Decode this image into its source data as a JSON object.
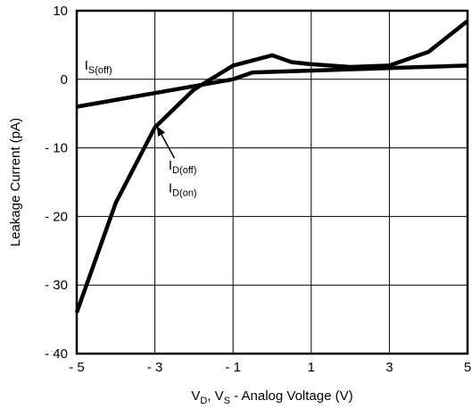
{
  "chart_data": {
    "type": "line",
    "title": "",
    "xlabel": {
      "parts": [
        {
          "text": "V",
          "sub": false
        },
        {
          "text": "D",
          "sub": true
        },
        {
          "text": ", V",
          "sub": false
        },
        {
          "text": "S",
          "sub": true
        },
        {
          "text": " - Analog Voltage (V)",
          "sub": false
        }
      ]
    },
    "ylabel": "Leakage Current (pA)",
    "xlim": [
      -5,
      5
    ],
    "ylim": [
      -40,
      10
    ],
    "xticks": [
      -5,
      -3,
      -1,
      1,
      3,
      5
    ],
    "xtick_labels": [
      "- 5",
      "- 3",
      "- 1",
      "1",
      "3",
      "5"
    ],
    "xgrid": [
      -5,
      -3,
      -1,
      1,
      3,
      5
    ],
    "yticks": [
      10,
      0,
      -10,
      -20,
      -30,
      -40
    ],
    "ytick_labels": [
      "10",
      "0",
      "- 10",
      "- 20",
      "- 30",
      "- 40"
    ],
    "ygrid": [
      0,
      -10,
      -20,
      -30
    ],
    "grid": true,
    "legend": "none",
    "series": [
      {
        "name": "",
        "points": [
          [
            -5,
            -4
          ],
          [
            -3,
            -2
          ],
          [
            -1,
            0
          ],
          [
            -0.5,
            1
          ],
          [
            5,
            2
          ]
        ]
      },
      {
        "name": "",
        "points": [
          [
            -5,
            -34
          ],
          [
            -4,
            -18
          ],
          [
            -3,
            -7
          ],
          [
            -2,
            -1.5
          ],
          [
            -1,
            2
          ],
          [
            0,
            3.5
          ],
          [
            0.5,
            2.5
          ],
          [
            1,
            2.2
          ],
          [
            2,
            1.8
          ],
          [
            3,
            2
          ],
          [
            4,
            4
          ],
          [
            5,
            8.5
          ]
        ]
      }
    ],
    "annotations": [
      {
        "name": "is-off",
        "parts": [
          {
            "text": "I",
            "sub": false
          },
          {
            "text": "S(off)",
            "sub": true
          }
        ],
        "x": -4.8,
        "y": 1.4
      },
      {
        "name": "id-off",
        "parts": [
          {
            "text": "I",
            "sub": false
          },
          {
            "text": "D(off)",
            "sub": true
          }
        ],
        "x": -2.65,
        "y": -13.2
      },
      {
        "name": "id-on",
        "parts": [
          {
            "text": "I",
            "sub": false
          },
          {
            "text": "D(on)",
            "sub": true
          }
        ],
        "x": -2.65,
        "y": -16.5
      }
    ],
    "arrow": {
      "from": [
        -2.5,
        -11.5
      ],
      "to": [
        -2.95,
        -6.8
      ]
    }
  }
}
